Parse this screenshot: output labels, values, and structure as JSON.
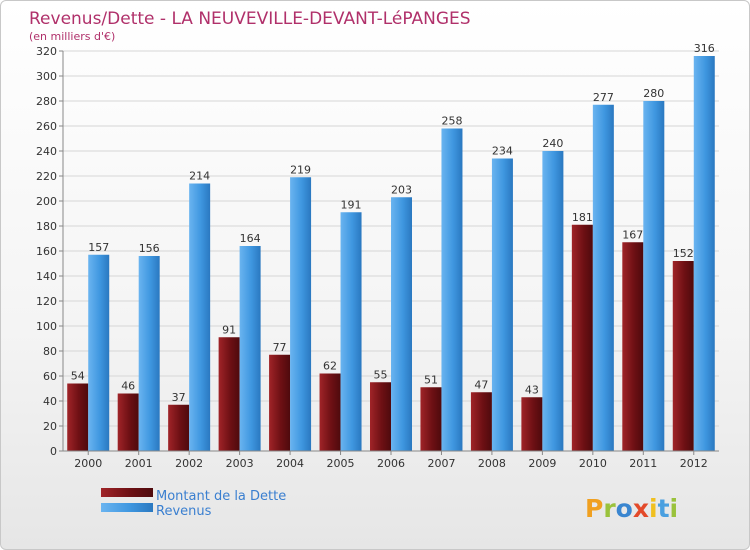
{
  "chart_data": {
    "type": "bar",
    "title": "Revenus/Dette - LA NEUVEVILLE-DEVANT-LéPANGES",
    "subtitle": "(en milliers d'€)",
    "categories": [
      "2000",
      "2001",
      "2002",
      "2003",
      "2004",
      "2005",
      "2006",
      "2007",
      "2008",
      "2009",
      "2010",
      "2011",
      "2012"
    ],
    "series": [
      {
        "name": "Montant de la Dette",
        "color": "#7a1418",
        "values": [
          54,
          46,
          37,
          91,
          77,
          62,
          55,
          51,
          47,
          43,
          181,
          167,
          152
        ]
      },
      {
        "name": "Revenus",
        "color": "#3f97e0",
        "values": [
          157,
          156,
          214,
          164,
          219,
          191,
          203,
          258,
          234,
          240,
          277,
          280,
          316
        ]
      }
    ],
    "ylim": [
      0,
      320
    ],
    "ytick_step": 20,
    "grid": true,
    "legend_position": "bottom-left",
    "data_labels": true
  },
  "brand": {
    "letters": [
      "P",
      "r",
      "o",
      "x",
      "i",
      "t",
      "i"
    ],
    "colors": [
      "#f0a020",
      "#9ac23c",
      "#3a86d0",
      "#e34a2a",
      "#f0c020",
      "#4aa0e0",
      "#9ac23c"
    ]
  }
}
